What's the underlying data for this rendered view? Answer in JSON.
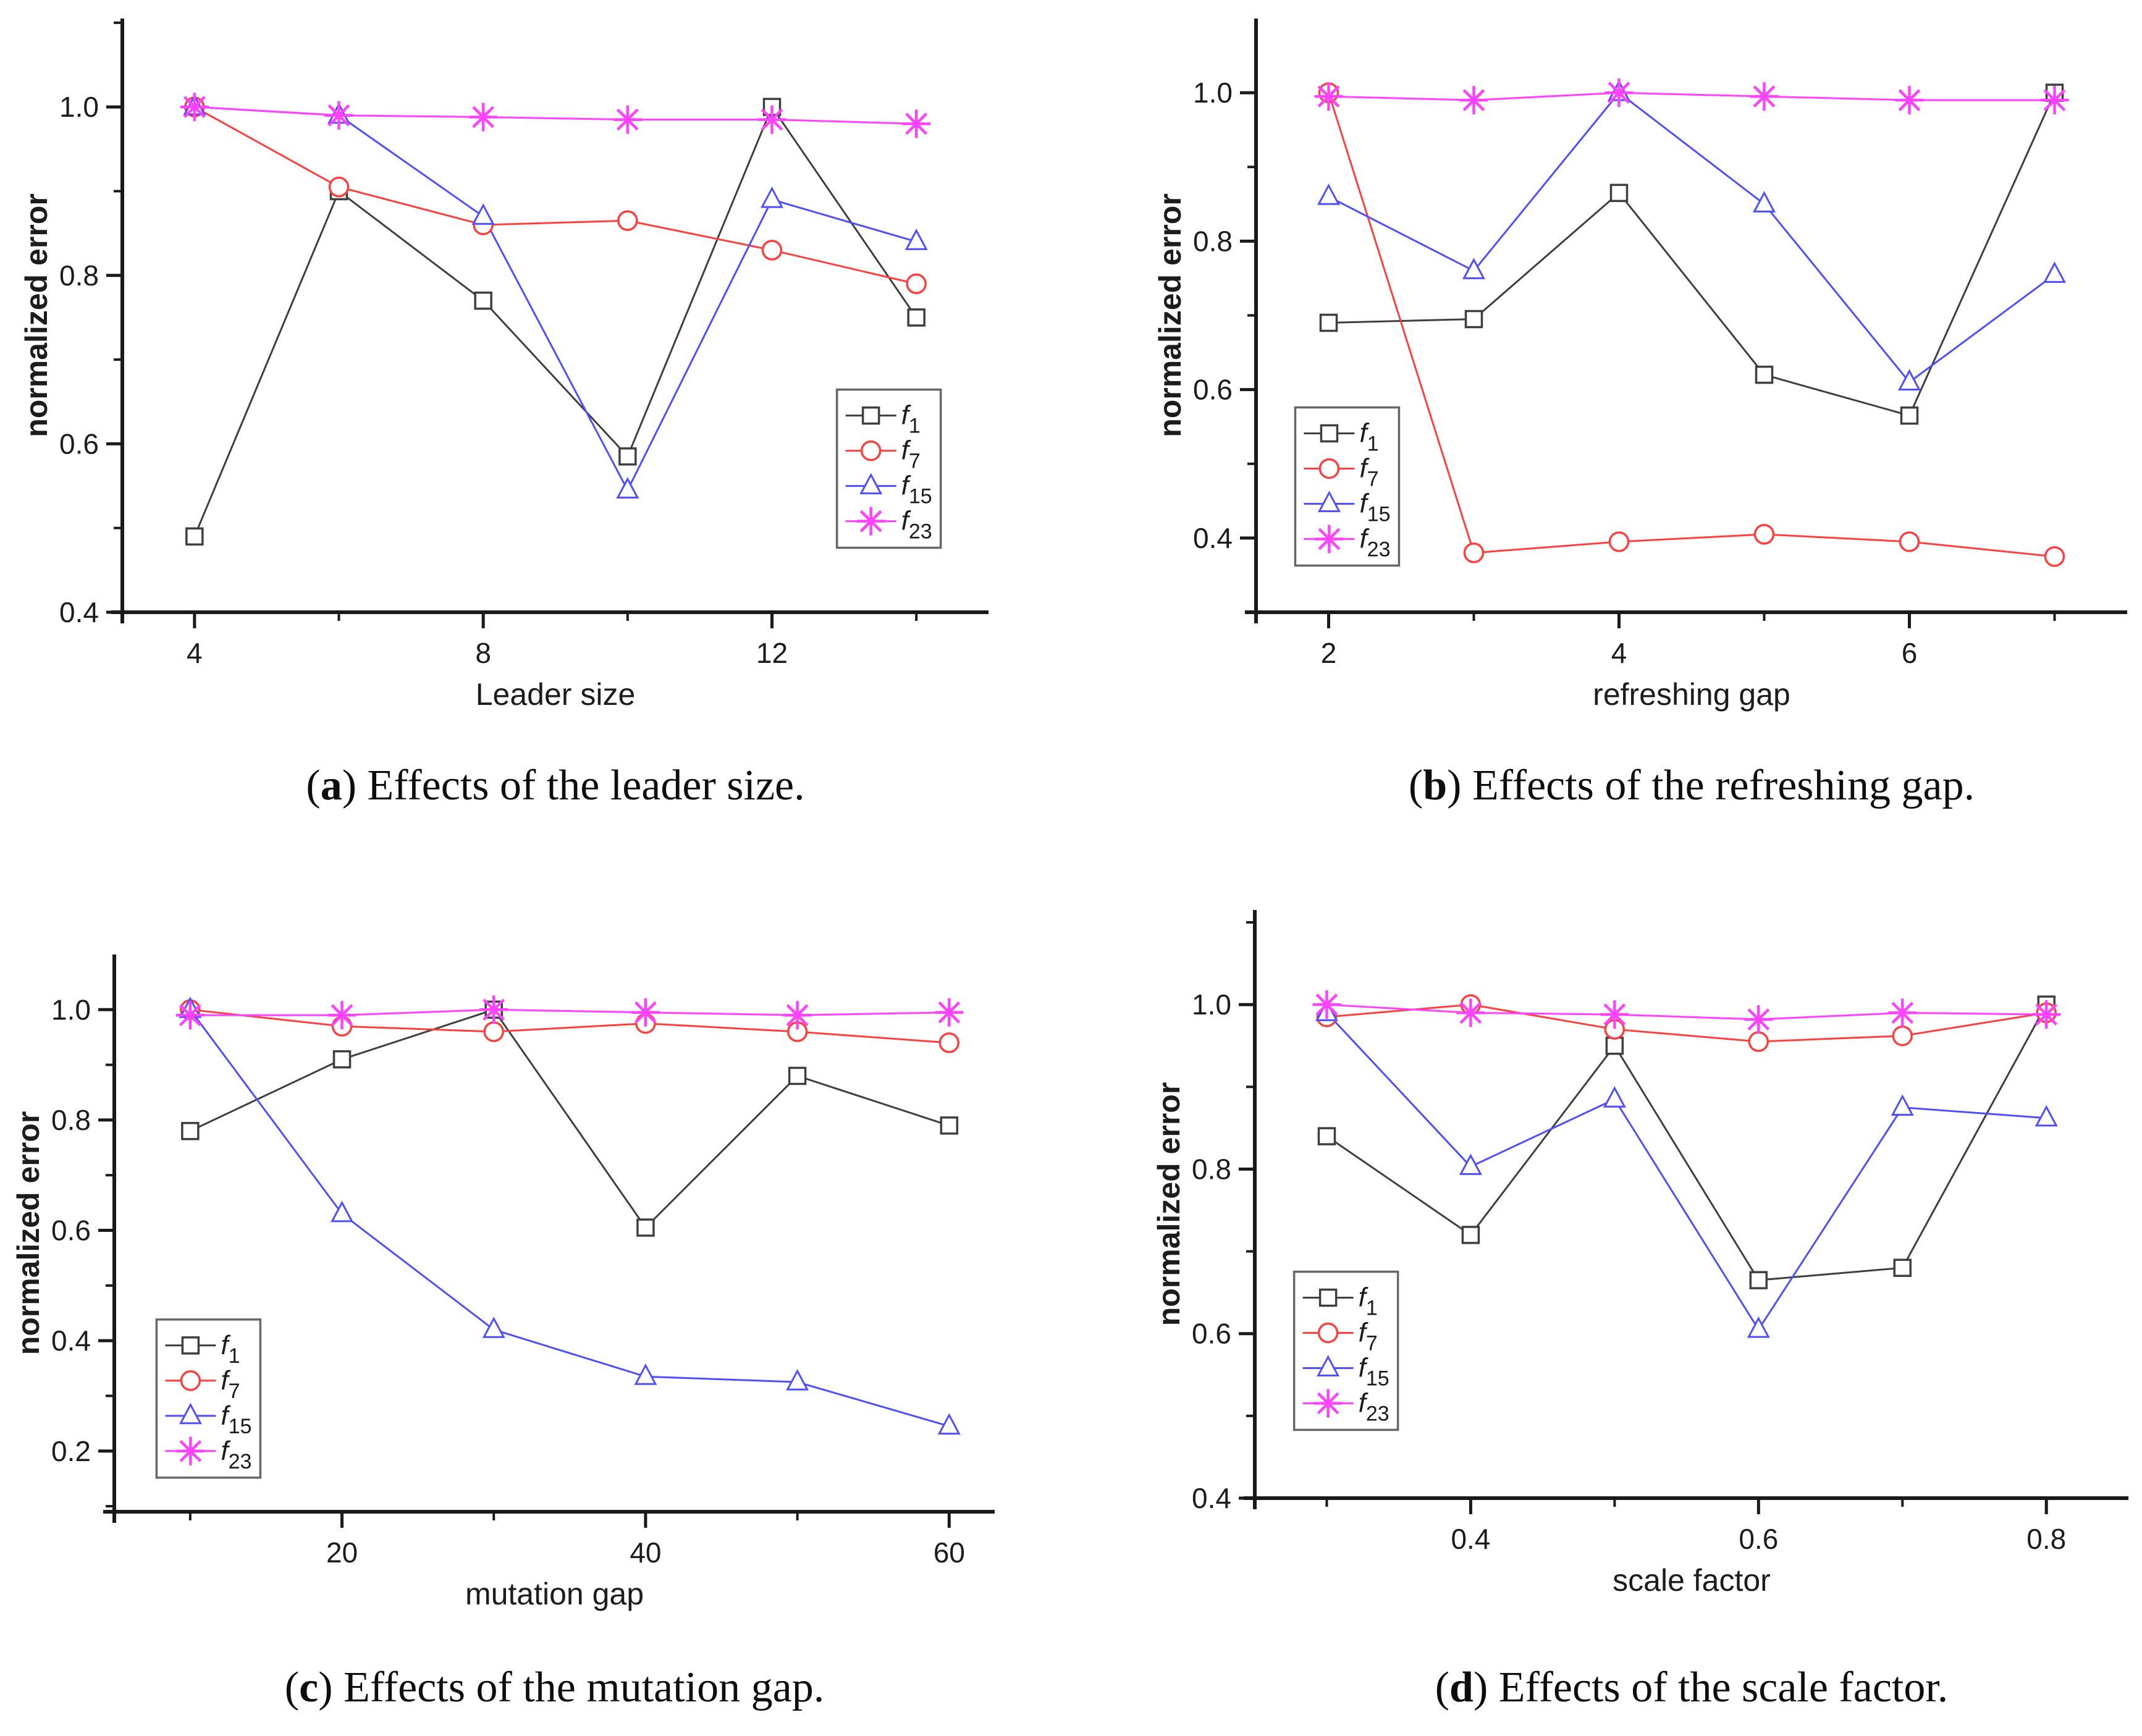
{
  "figure": {
    "background": "#ffffff",
    "paren_open": "(",
    "paren_close": ") ",
    "axis_color": "#1a1a1a",
    "legend_border_color": "#666666",
    "series_colors": {
      "f1": "#3f3f3f",
      "f7": "#fb4040",
      "f15": "#4f4ffb",
      "f23": "#ff42ff"
    }
  },
  "chart_data": [
    {
      "id": "a",
      "type": "line",
      "caption_letter": "a",
      "caption_text": "Effects of the leader size.",
      "xlabel": "Leader size",
      "ylabel": "normalized error",
      "xlim": [
        3.0,
        15.0
      ],
      "ylim": [
        0.4,
        1.105
      ],
      "xticks": [
        4,
        8,
        12
      ],
      "xtick_labels": [
        "4",
        "8",
        "12"
      ],
      "xminor": [
        6,
        10,
        14
      ],
      "yticks": [
        0.4,
        0.6,
        0.8,
        1.0
      ],
      "ytick_labels": [
        "0.4",
        "0.6",
        "0.8",
        "1.0"
      ],
      "yminor": [
        0.5,
        0.7,
        0.9,
        1.1
      ],
      "grid": false,
      "legend_pos": [
        0.825,
        0.625
      ],
      "x": [
        4,
        6,
        8,
        10,
        12,
        14
      ],
      "series": [
        {
          "name": "f1",
          "label_base": "f",
          "label_sub": "1",
          "marker": "square",
          "color": "#3f3f3f",
          "values": [
            0.49,
            0.9,
            0.77,
            0.585,
            1.0,
            0.75
          ]
        },
        {
          "name": "f7",
          "label_base": "f",
          "label_sub": "7",
          "marker": "circle",
          "color": "#fb4040",
          "values": [
            1.0,
            0.905,
            0.86,
            0.865,
            0.83,
            0.79
          ]
        },
        {
          "name": "f15",
          "label_base": "f",
          "label_sub": "15",
          "marker": "triangle",
          "color": "#4f4ffb",
          "values": [
            1.0,
            0.99,
            0.87,
            0.545,
            0.89,
            0.84
          ]
        },
        {
          "name": "f23",
          "label_base": "f",
          "label_sub": "23",
          "marker": "star",
          "color": "#ff42ff",
          "values": [
            1.0,
            0.99,
            0.988,
            0.985,
            0.985,
            0.98
          ]
        }
      ]
    },
    {
      "id": "b",
      "type": "line",
      "caption_letter": "b",
      "caption_text": "Effects of the refreshing gap.",
      "xlabel": "refreshing gap",
      "ylabel": "normalized error",
      "xlim": [
        1.5,
        7.5
      ],
      "ylim": [
        0.3,
        1.1
      ],
      "xticks": [
        2,
        4,
        6
      ],
      "xtick_labels": [
        "2",
        "4",
        "6"
      ],
      "xminor": [
        3,
        5,
        7
      ],
      "yticks": [
        0.4,
        0.6,
        0.8,
        1.0
      ],
      "ytick_labels": [
        "0.4",
        "0.6",
        "0.8",
        "1.0"
      ],
      "yminor": [
        0.3,
        0.5,
        0.7,
        0.9
      ],
      "grid": false,
      "legend_pos": [
        0.045,
        0.655
      ],
      "x": [
        2,
        3,
        4,
        5,
        6,
        7
      ],
      "series": [
        {
          "name": "f1",
          "label_base": "f",
          "label_sub": "1",
          "marker": "square",
          "color": "#3f3f3f",
          "values": [
            0.69,
            0.695,
            0.865,
            0.62,
            0.565,
            1.0
          ]
        },
        {
          "name": "f7",
          "label_base": "f",
          "label_sub": "7",
          "marker": "circle",
          "color": "#fb4040",
          "values": [
            1.0,
            0.38,
            0.395,
            0.405,
            0.395,
            0.375
          ]
        },
        {
          "name": "f15",
          "label_base": "f",
          "label_sub": "15",
          "marker": "triangle",
          "color": "#4f4ffb",
          "values": [
            0.86,
            0.76,
            1.0,
            0.85,
            0.61,
            0.755
          ]
        },
        {
          "name": "f23",
          "label_base": "f",
          "label_sub": "23",
          "marker": "star",
          "color": "#ff42ff",
          "values": [
            0.995,
            0.99,
            1.0,
            0.995,
            0.99,
            0.99
          ]
        }
      ]
    },
    {
      "id": "c",
      "type": "line",
      "caption_letter": "c",
      "caption_text": "Effects of the mutation gap.",
      "xlabel": "mutation gap",
      "ylabel": "normalized error",
      "xlim": [
        5,
        63
      ],
      "ylim": [
        0.09,
        1.1
      ],
      "xticks": [
        20,
        40,
        60
      ],
      "xtick_labels": [
        "20",
        "40",
        "60"
      ],
      "xminor": [
        10,
        30,
        50
      ],
      "yticks": [
        0.2,
        0.4,
        0.6,
        0.8,
        1.0
      ],
      "ytick_labels": [
        "0.2",
        "0.4",
        "0.6",
        "0.8",
        "1.0"
      ],
      "yminor": [
        0.1,
        0.3,
        0.5,
        0.7,
        0.9
      ],
      "grid": false,
      "legend_pos": [
        0.048,
        0.655
      ],
      "x": [
        10,
        20,
        30,
        40,
        50,
        60
      ],
      "series": [
        {
          "name": "f1",
          "label_base": "f",
          "label_sub": "1",
          "marker": "square",
          "color": "#3f3f3f",
          "values": [
            0.78,
            0.91,
            1.0,
            0.605,
            0.88,
            0.79
          ]
        },
        {
          "name": "f7",
          "label_base": "f",
          "label_sub": "7",
          "marker": "circle",
          "color": "#fb4040",
          "values": [
            1.0,
            0.97,
            0.96,
            0.975,
            0.96,
            0.94
          ]
        },
        {
          "name": "f15",
          "label_base": "f",
          "label_sub": "15",
          "marker": "triangle",
          "color": "#4f4ffb",
          "values": [
            1.0,
            0.63,
            0.42,
            0.335,
            0.325,
            0.245
          ]
        },
        {
          "name": "f23",
          "label_base": "f",
          "label_sub": "23",
          "marker": "star",
          "color": "#ff42ff",
          "values": [
            0.99,
            0.99,
            1.0,
            0.995,
            0.99,
            0.995
          ]
        }
      ]
    },
    {
      "id": "d",
      "type": "line",
      "caption_letter": "d",
      "caption_text": "Effects of the scale factor.",
      "xlabel": "scale factor",
      "ylabel": "normalized error",
      "xlim": [
        0.25,
        0.857
      ],
      "ylim": [
        0.4,
        1.115
      ],
      "xticks": [
        0.4,
        0.6,
        0.8
      ],
      "xtick_labels": [
        "0.4",
        "0.6",
        "0.8"
      ],
      "xminor": [
        0.3,
        0.5,
        0.7
      ],
      "yticks": [
        0.4,
        0.6,
        0.8,
        1.0
      ],
      "ytick_labels": [
        "0.4",
        "0.6",
        "0.8",
        "1.0"
      ],
      "yminor": [
        0.5,
        0.7,
        0.9,
        1.1
      ],
      "grid": false,
      "legend_pos": [
        0.045,
        0.615
      ],
      "x": [
        0.3,
        0.4,
        0.5,
        0.6,
        0.7,
        0.8
      ],
      "series": [
        {
          "name": "f1",
          "label_base": "f",
          "label_sub": "1",
          "marker": "square",
          "color": "#3f3f3f",
          "values": [
            0.84,
            0.72,
            0.95,
            0.665,
            0.68,
            1.0
          ]
        },
        {
          "name": "f7",
          "label_base": "f",
          "label_sub": "7",
          "marker": "circle",
          "color": "#fb4040",
          "values": [
            0.985,
            1.0,
            0.97,
            0.955,
            0.962,
            0.99
          ]
        },
        {
          "name": "f15",
          "label_base": "f",
          "label_sub": "15",
          "marker": "triangle",
          "color": "#4f4ffb",
          "values": [
            0.99,
            0.803,
            0.885,
            0.605,
            0.875,
            0.862
          ]
        },
        {
          "name": "f23",
          "label_base": "f",
          "label_sub": "23",
          "marker": "star",
          "color": "#ff42ff",
          "values": [
            1.0,
            0.99,
            0.988,
            0.982,
            0.99,
            0.988
          ]
        }
      ]
    }
  ]
}
